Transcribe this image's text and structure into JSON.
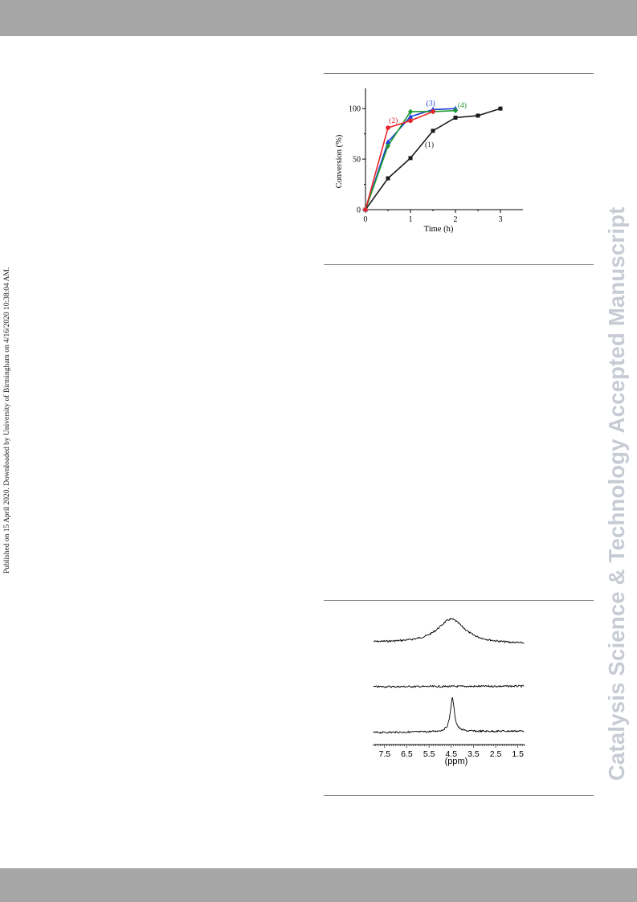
{
  "margin_note": "Published on 15 April 2020. Downloaded by University of Birmingham on 4/16/2020 10:38:04 AM.",
  "journal_watermark": "Catalysis Science & Technology Accepted Manuscript",
  "chart_data": [
    {
      "type": "line",
      "xlabel": "Time (h)",
      "ylabel": "Conversion (%)",
      "xlim": [
        0,
        3.5
      ],
      "ylim": [
        0,
        120
      ],
      "x_ticks": [
        "0",
        "1",
        "2",
        "3"
      ],
      "y_ticks": [
        "0",
        "50",
        "100"
      ],
      "grid": false,
      "series": [
        {
          "name": "(1)",
          "color": "#1a1a1a",
          "marker": "square",
          "x": [
            0,
            0.5,
            1,
            1.5,
            2,
            2.5,
            3
          ],
          "y": [
            0,
            31,
            51,
            78,
            91,
            93,
            100
          ]
        },
        {
          "name": "(2)",
          "color": "#e8232a",
          "marker": "circle",
          "x": [
            0,
            0.5,
            1,
            1.5
          ],
          "y": [
            0,
            81,
            88,
            97
          ]
        },
        {
          "name": "(3)",
          "color": "#1f3fd6",
          "marker": "triangle",
          "x": [
            0,
            0.5,
            1,
            1.5,
            2
          ],
          "y": [
            0,
            67,
            92,
            99,
            100
          ]
        },
        {
          "name": "(4)",
          "color": "#1f9a2e",
          "marker": "diamond",
          "x": [
            0,
            0.5,
            1,
            1.5,
            2
          ],
          "y": [
            0,
            63,
            97,
            97,
            98
          ]
        }
      ]
    },
    {
      "type": "line",
      "xlabel": "(ppm)",
      "x_ticks": [
        "7.5",
        "6.5",
        "5.5",
        "4.5",
        "3.5",
        "2.5",
        "1.5"
      ],
      "xlim": [
        8.0,
        1.2
      ],
      "x_reversed": true,
      "series": [
        {
          "name": "",
          "peak_ppm": 4.5,
          "peak_shape": "broad"
        },
        {
          "name": "",
          "peak_ppm": null,
          "peak_shape": "flat"
        },
        {
          "name": "",
          "peak_ppm": 4.45,
          "peak_shape": "sharp"
        }
      ]
    }
  ]
}
